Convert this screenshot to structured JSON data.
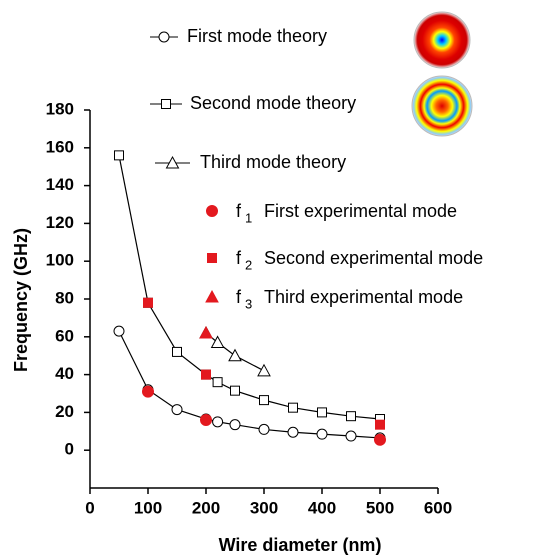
{
  "chart_data": {
    "type": "line",
    "xlabel": "Wire diameter (nm)",
    "ylabel": "Frequency (GHz)",
    "xlim": [
      0,
      600
    ],
    "xticks": [
      0,
      100,
      200,
      300,
      400,
      500,
      600
    ],
    "ylim": [
      -20,
      180
    ],
    "yticks": [
      0,
      20,
      40,
      60,
      80,
      100,
      120,
      140,
      160,
      180
    ],
    "series": [
      {
        "name": "First mode theory",
        "marker": "circle",
        "filled": false,
        "line": true,
        "color": "#000000",
        "x": [
          50,
          100,
          150,
          200,
          220,
          250,
          300,
          350,
          400,
          450,
          500
        ],
        "values": [
          63,
          32,
          21.5,
          16.5,
          15,
          13.5,
          11,
          9.5,
          8.5,
          7.5,
          6.5
        ]
      },
      {
        "name": "Second mode theory",
        "marker": "square",
        "filled": false,
        "line": true,
        "color": "#000000",
        "x": [
          50,
          100,
          150,
          200,
          220,
          250,
          300,
          350,
          400,
          450,
          500
        ],
        "values": [
          156,
          78,
          52,
          40,
          36,
          31.5,
          26.5,
          22.5,
          20,
          18,
          16.5
        ]
      },
      {
        "name": "Third mode theory",
        "marker": "triangle",
        "filled": false,
        "line": true,
        "color": "#000000",
        "x": [
          200,
          220,
          250,
          300
        ],
        "values": [
          62,
          57,
          50,
          42
        ]
      },
      {
        "name": "First experimental mode",
        "symbol": "f",
        "subscript": "1",
        "marker": "circle",
        "filled": true,
        "line": false,
        "color": "#e3191f",
        "x": [
          100,
          200,
          500
        ],
        "values": [
          31,
          16,
          5.5
        ]
      },
      {
        "name": "Second experimental mode",
        "symbol": "f",
        "subscript": "2",
        "marker": "square",
        "filled": true,
        "line": false,
        "color": "#e3191f",
        "x": [
          100,
          200,
          500
        ],
        "values": [
          78,
          40,
          13.5
        ]
      },
      {
        "name": "Third experimental  mode",
        "symbol": "f",
        "subscript": "3",
        "marker": "triangle",
        "filled": true,
        "line": false,
        "color": "#e3191f",
        "x": [
          200
        ],
        "values": [
          62
        ]
      }
    ]
  }
}
